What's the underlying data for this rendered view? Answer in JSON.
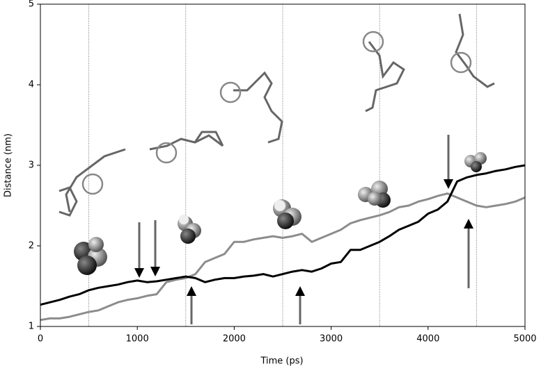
{
  "chart_data": {
    "type": "line",
    "xlabel": "Time (ps)",
    "ylabel": "Distance (nm)",
    "x": [
      0,
      100,
      200,
      300,
      400,
      500,
      600,
      700,
      800,
      900,
      1000,
      1100,
      1200,
      1300,
      1400,
      1500,
      1600,
      1700,
      1800,
      1900,
      2000,
      2100,
      2200,
      2300,
      2400,
      2500,
      2600,
      2700,
      2800,
      2900,
      3000,
      3100,
      3200,
      3300,
      3400,
      3500,
      3600,
      3700,
      3800,
      3900,
      4000,
      4100,
      4200,
      4300,
      4400,
      4500,
      4600,
      4700,
      4800,
      4900,
      5000
    ],
    "series": [
      {
        "color": "#000000",
        "values": [
          1.27,
          1.3,
          1.33,
          1.37,
          1.4,
          1.45,
          1.48,
          1.5,
          1.52,
          1.55,
          1.57,
          1.55,
          1.56,
          1.58,
          1.6,
          1.62,
          1.6,
          1.55,
          1.58,
          1.6,
          1.6,
          1.62,
          1.63,
          1.65,
          1.62,
          1.65,
          1.68,
          1.7,
          1.68,
          1.72,
          1.78,
          1.8,
          1.95,
          1.95,
          2.0,
          2.05,
          2.12,
          2.2,
          2.25,
          2.3,
          2.4,
          2.45,
          2.55,
          2.8,
          2.85,
          2.88,
          2.9,
          2.93,
          2.95,
          2.98,
          3.0
        ]
      },
      {
        "color": "#8c8c8c",
        "values": [
          1.08,
          1.1,
          1.1,
          1.12,
          1.15,
          1.18,
          1.2,
          1.25,
          1.3,
          1.33,
          1.35,
          1.38,
          1.4,
          1.55,
          1.58,
          1.6,
          1.65,
          1.8,
          1.85,
          1.9,
          2.05,
          2.05,
          2.08,
          2.1,
          2.12,
          2.1,
          2.12,
          2.15,
          2.05,
          2.1,
          2.15,
          2.2,
          2.28,
          2.32,
          2.35,
          2.38,
          2.42,
          2.48,
          2.5,
          2.55,
          2.58,
          2.62,
          2.65,
          2.6,
          2.55,
          2.5,
          2.48,
          2.5,
          2.52,
          2.55,
          2.6
        ]
      }
    ],
    "vlines": [
      500,
      1500,
      2500,
      3500,
      4500
    ],
    "xlim": [
      0,
      5000
    ],
    "xticks": [
      0,
      1000,
      2000,
      3000,
      4000,
      5000
    ],
    "ylim": [
      1,
      5
    ],
    "yticks": [
      1,
      2,
      3,
      4,
      5
    ]
  }
}
